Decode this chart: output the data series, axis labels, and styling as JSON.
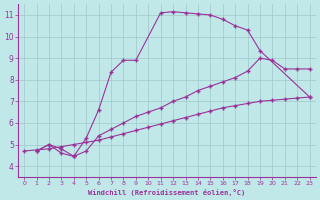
{
  "bg_color": "#c0e8e8",
  "line_color": "#993399",
  "grid_color": "#a0c8c8",
  "xlabel": "Windchill (Refroidissement éolien,°C)",
  "xlabel_color": "#993399",
  "tick_color": "#993399",
  "spine_color": "#993399",
  "xlim": [
    -0.5,
    23.5
  ],
  "ylim": [
    3.5,
    11.5
  ],
  "yticks": [
    4,
    5,
    6,
    7,
    8,
    9,
    10,
    11
  ],
  "xticks": [
    0,
    1,
    2,
    3,
    4,
    5,
    6,
    7,
    8,
    9,
    10,
    11,
    12,
    13,
    14,
    15,
    16,
    17,
    18,
    19,
    20,
    21,
    22,
    23
  ],
  "curve1_x": [
    1,
    2,
    3,
    4,
    4,
    5,
    6,
    7,
    8,
    9,
    11,
    12,
    13,
    14,
    15,
    16,
    17,
    18,
    19,
    23
  ],
  "curve1_y": [
    4.7,
    5.0,
    4.6,
    4.45,
    4.45,
    5.3,
    6.6,
    8.35,
    8.9,
    8.9,
    11.1,
    11.15,
    11.1,
    11.05,
    11.0,
    10.8,
    10.5,
    10.3,
    9.35,
    7.2
  ],
  "curve2_x": [
    1,
    2,
    3,
    4,
    5,
    6,
    7,
    8,
    9,
    10,
    11,
    12,
    13,
    14,
    15,
    16,
    17,
    18,
    19,
    20,
    21,
    22,
    23
  ],
  "curve2_y": [
    4.7,
    5.0,
    4.8,
    4.45,
    4.7,
    5.4,
    5.7,
    6.0,
    6.3,
    6.5,
    6.7,
    7.0,
    7.2,
    7.5,
    7.7,
    7.9,
    8.1,
    8.4,
    9.0,
    8.9,
    8.5,
    8.5,
    8.5
  ],
  "curve3_x": [
    0,
    1,
    2,
    3,
    4,
    5,
    6,
    7,
    8,
    9,
    10,
    11,
    12,
    13,
    14,
    15,
    16,
    17,
    18,
    19,
    20,
    21,
    22,
    23
  ],
  "curve3_y": [
    4.7,
    4.75,
    4.8,
    4.9,
    5.0,
    5.1,
    5.2,
    5.35,
    5.5,
    5.65,
    5.8,
    5.95,
    6.1,
    6.25,
    6.4,
    6.55,
    6.7,
    6.8,
    6.9,
    7.0,
    7.05,
    7.1,
    7.15,
    7.2
  ]
}
